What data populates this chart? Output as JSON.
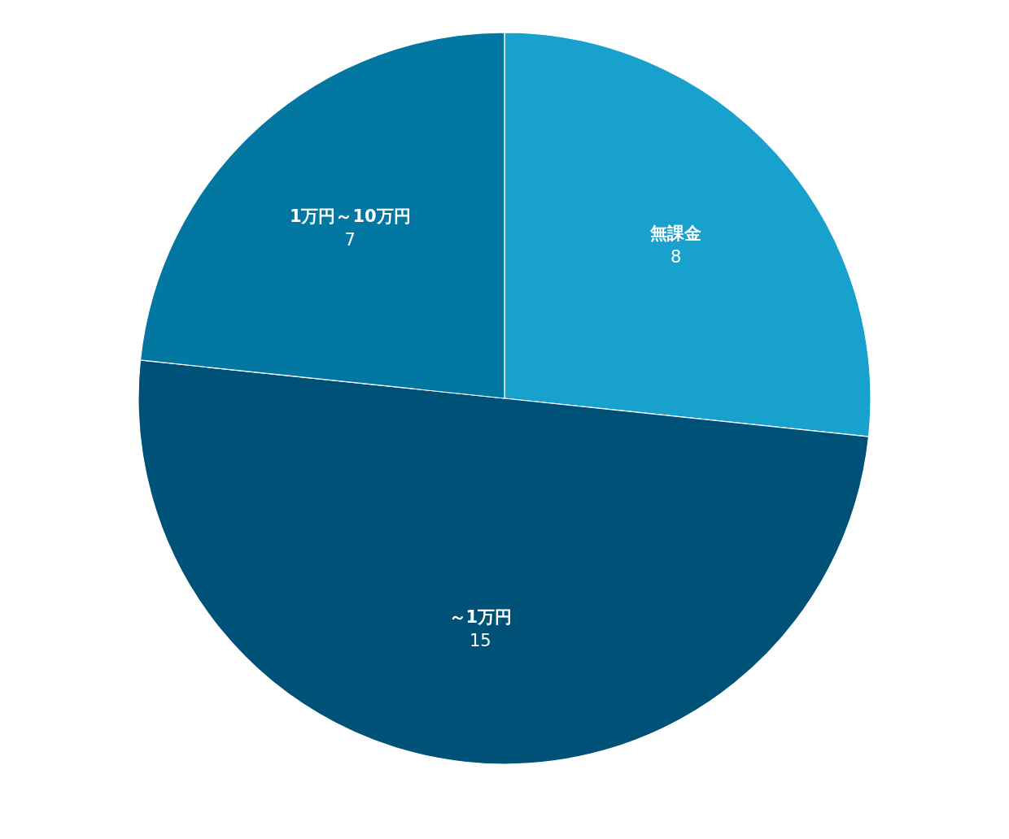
{
  "chart_data": {
    "type": "pie",
    "categories": [
      "無課金",
      "～1万円",
      "1万円～10万円"
    ],
    "values": [
      8,
      15,
      7
    ],
    "colors": [
      "#18a1cd",
      "#005178",
      "#0277a1"
    ],
    "data_labels": true
  }
}
